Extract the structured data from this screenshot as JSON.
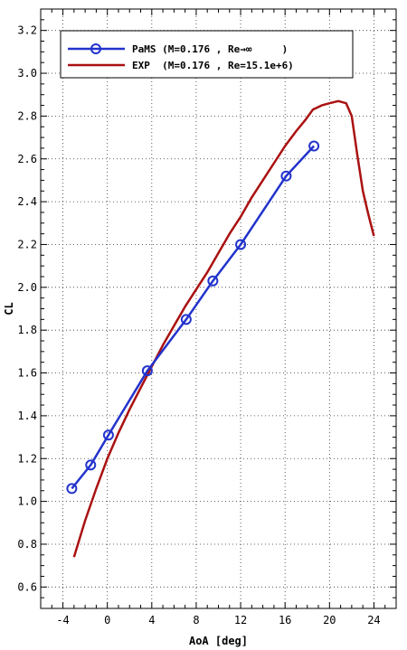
{
  "chart_data": {
    "type": "line",
    "xlabel": "AoA [deg]",
    "ylabel": "CL",
    "xlim": [
      -6,
      26
    ],
    "ylim": [
      0.5,
      3.3
    ],
    "xticks": [
      -4,
      0,
      4,
      8,
      12,
      16,
      20,
      24
    ],
    "yticks": [
      0.6,
      0.8,
      1.0,
      1.2,
      1.4,
      1.6,
      1.8,
      2.0,
      2.2,
      2.4,
      2.6,
      2.8,
      3.0,
      3.2
    ],
    "grid": true,
    "legend_position": "top-left",
    "series": [
      {
        "name": "PaMS (M=0.176 , Re→∞     )",
        "color": "#2233cc",
        "marker": "circle",
        "x": [
          -3.2,
          -1.5,
          0.1,
          3.6,
          7.1,
          9.5,
          12.0,
          16.1,
          18.6
        ],
        "y": [
          1.06,
          1.17,
          1.31,
          1.61,
          1.85,
          2.03,
          2.2,
          2.52,
          2.66
        ]
      },
      {
        "name": "EXP  (M=0.176 , Re=15.1e+6)",
        "color": "#aa1111",
        "marker": "none",
        "x": [
          -3.0,
          -2.0,
          -1.0,
          0.0,
          1.0,
          2.0,
          3.0,
          4.0,
          5.0,
          6.0,
          7.0,
          8.0,
          9.0,
          10.0,
          11.0,
          12.0,
          13.0,
          14.0,
          15.0,
          16.0,
          17.0,
          17.8,
          18.5,
          19.3,
          20.0,
          20.8,
          21.5,
          22.0,
          22.5,
          23.0,
          23.5,
          24.0
        ],
        "y": [
          0.74,
          0.91,
          1.06,
          1.2,
          1.32,
          1.43,
          1.53,
          1.63,
          1.73,
          1.82,
          1.91,
          1.99,
          2.07,
          2.16,
          2.25,
          2.33,
          2.42,
          2.5,
          2.58,
          2.66,
          2.73,
          2.78,
          2.83,
          2.85,
          2.86,
          2.87,
          2.86,
          2.8,
          2.62,
          2.45,
          2.34,
          2.24
        ]
      }
    ]
  }
}
